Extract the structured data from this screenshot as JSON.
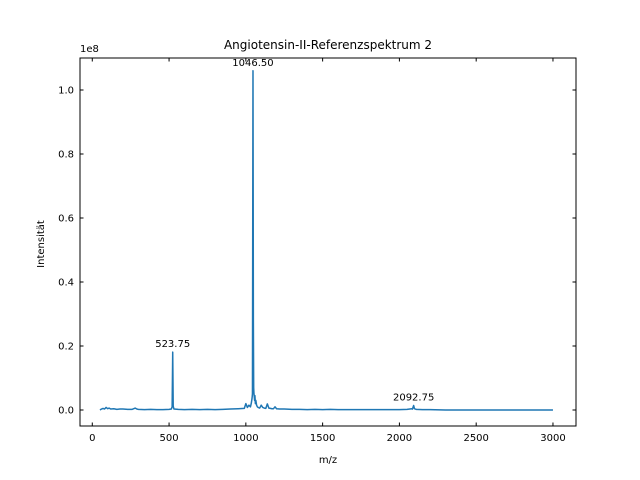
{
  "chart_data": {
    "type": "line",
    "title": "Angiotensin-II-Referenzspektrum 2",
    "xlabel": "m/z",
    "ylabel": "Intensität",
    "y_offset_label": "1e8",
    "xlim": [
      -80,
      3150
    ],
    "ylim": [
      -0.05,
      1.1
    ],
    "y_scale_factor": 100000000,
    "x_ticks": [
      0,
      500,
      1000,
      1500,
      2000,
      2500,
      3000
    ],
    "x_tick_labels": [
      "0",
      "500",
      "1000",
      "1500",
      "2000",
      "2500",
      "3000"
    ],
    "y_ticks": [
      0.0,
      0.2,
      0.4,
      0.6,
      0.8,
      1.0
    ],
    "y_tick_labels": [
      "0.0",
      "0.2",
      "0.4",
      "0.6",
      "0.8",
      "1.0"
    ],
    "grid": false,
    "tick_direction": "in",
    "mirror_ticks": true,
    "series": [
      {
        "color": "#1f77b4",
        "x": [
          50,
          60,
          70,
          80,
          90,
          100,
          110,
          120,
          140,
          160,
          180,
          200,
          230,
          260,
          280,
          290,
          300,
          340,
          380,
          420,
          460,
          500,
          515,
          520,
          523.75,
          527,
          532,
          560,
          600,
          650,
          700,
          750,
          800,
          850,
          900,
          950,
          990,
          1000,
          1010,
          1020,
          1030,
          1035,
          1040,
          1043,
          1046.5,
          1049,
          1051,
          1053,
          1055,
          1057,
          1059,
          1062,
          1065,
          1070,
          1075,
          1080,
          1090,
          1100,
          1110,
          1120,
          1130,
          1140,
          1150,
          1160,
          1170,
          1180,
          1190,
          1200,
          1220,
          1250,
          1300,
          1350,
          1400,
          1450,
          1500,
          1550,
          1600,
          1650,
          1700,
          1800,
          1900,
          2000,
          2050,
          2080,
          2085,
          2092.75,
          2098,
          2110,
          2150,
          2200,
          2300,
          2400,
          2500,
          2600,
          2700,
          2800,
          2900,
          3000
        ],
        "y": [
          0.0,
          0.003,
          0.005,
          0.003,
          0.008,
          0.004,
          0.006,
          0.003,
          0.004,
          0.002,
          0.003,
          0.003,
          0.002,
          0.002,
          0.006,
          0.003,
          0.002,
          0.001,
          0.002,
          0.001,
          0.001,
          0.002,
          0.003,
          0.01,
          0.181,
          0.012,
          0.003,
          0.002,
          0.001,
          0.002,
          0.001,
          0.002,
          0.001,
          0.002,
          0.003,
          0.004,
          0.005,
          0.02,
          0.008,
          0.015,
          0.01,
          0.02,
          0.035,
          0.05,
          1.06,
          0.28,
          0.07,
          0.05,
          0.04,
          0.03,
          0.045,
          0.02,
          0.03,
          0.015,
          0.01,
          0.008,
          0.006,
          0.015,
          0.008,
          0.006,
          0.005,
          0.019,
          0.006,
          0.005,
          0.004,
          0.004,
          0.01,
          0.004,
          0.003,
          0.003,
          0.002,
          0.002,
          0.001,
          0.002,
          0.001,
          0.002,
          0.001,
          0.001,
          0.001,
          0.001,
          0.001,
          0.001,
          0.002,
          0.004,
          0.003,
          0.014,
          0.004,
          0.002,
          0.001,
          0.001,
          0.0,
          0.0,
          0.0,
          0.0,
          0.0,
          0.0,
          0.0,
          0.0
        ]
      }
    ],
    "annotations": [
      {
        "x": 523.75,
        "y": 0.181,
        "text": "523.75"
      },
      {
        "x": 1046.5,
        "y": 1.06,
        "text": "1046.50"
      },
      {
        "x": 2092.75,
        "y": 0.014,
        "text": "2092.75"
      }
    ]
  }
}
